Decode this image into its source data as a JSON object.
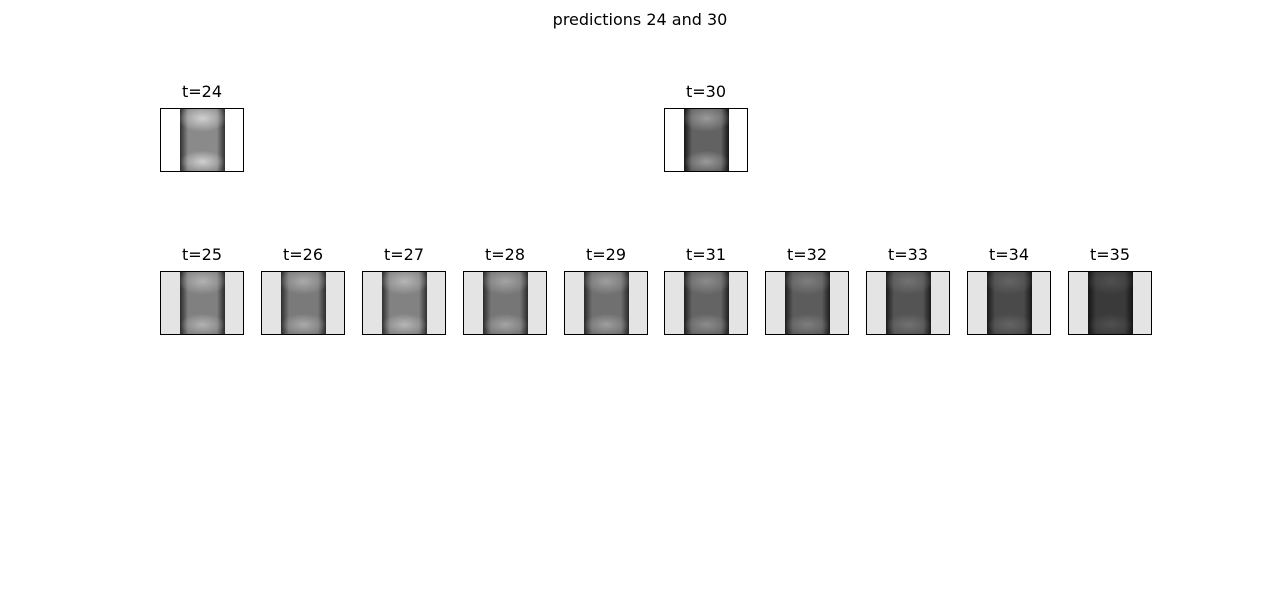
{
  "figure": {
    "title": "predictions 24 and 30"
  },
  "panels": [
    {
      "label": "t=24",
      "background": "#ffffff",
      "core": "#d0d0d0",
      "mid": "#8a8a8a",
      "edge": "#303030"
    },
    {
      "label": "t=30",
      "background": "#ffffff",
      "core": "#9a9a9a",
      "mid": "#626262",
      "edge": "#151515"
    },
    {
      "label": "t=25",
      "background": "#e4e4e4",
      "core": "#b2b2b2",
      "mid": "#808080",
      "edge": "#2a2a2a"
    },
    {
      "label": "t=26",
      "background": "#e4e4e4",
      "core": "#aaaaaa",
      "mid": "#7a7a7a",
      "edge": "#2c2c2c"
    },
    {
      "label": "t=27",
      "background": "#e4e4e4",
      "core": "#b6b6b6",
      "mid": "#828282",
      "edge": "#2e2e2e"
    },
    {
      "label": "t=28",
      "background": "#e4e4e4",
      "core": "#a4a4a4",
      "mid": "#767676",
      "edge": "#2a2a2a"
    },
    {
      "label": "t=29",
      "background": "#e4e4e4",
      "core": "#9e9e9e",
      "mid": "#707070",
      "edge": "#282828"
    },
    {
      "label": "t=31",
      "background": "#e4e4e4",
      "core": "#8c8c8c",
      "mid": "#646464",
      "edge": "#1e1e1e"
    },
    {
      "label": "t=32",
      "background": "#e4e4e4",
      "core": "#7e7e7e",
      "mid": "#5c5c5c",
      "edge": "#1c1c1c"
    },
    {
      "label": "t=33",
      "background": "#e4e4e4",
      "core": "#727272",
      "mid": "#545454",
      "edge": "#1a1a1a"
    },
    {
      "label": "t=34",
      "background": "#e4e4e4",
      "core": "#646464",
      "mid": "#4a4a4a",
      "edge": "#181818"
    },
    {
      "label": "t=35",
      "background": "#e4e4e4",
      "core": "#505050",
      "mid": "#3a3a3a",
      "edge": "#141414"
    }
  ]
}
